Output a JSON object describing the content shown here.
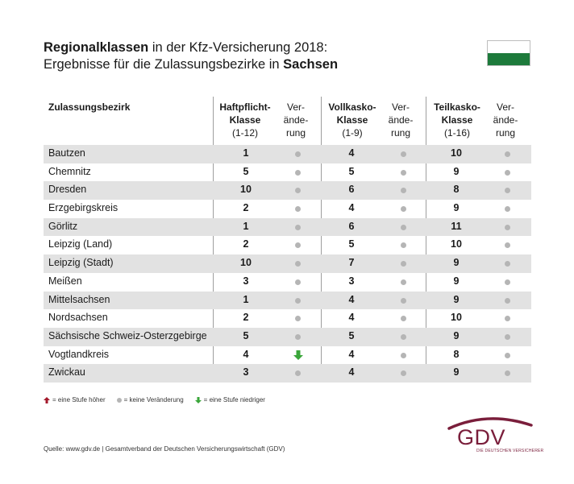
{
  "title": {
    "bold_1": "Regionalklassen",
    "rest_1": " in der Kfz-Versicherung 2018:",
    "rest_2": "Ergebnisse für die Zulassungsbezirke in ",
    "bold_2": "Sachsen"
  },
  "flag": {
    "colors": [
      "#ffffff",
      "#1d7a3b"
    ]
  },
  "columns": {
    "district": "Zulassungsbezirk",
    "haft_1": "Haftpflicht-",
    "haft_2": "Klasse",
    "haft_3": "(1-12)",
    "voll_1": "Vollkasko-",
    "voll_2": "Klasse",
    "voll_3": "(1-9)",
    "teil_1": "Teilkasko-",
    "teil_2": "Klasse",
    "teil_3": "(1-16)",
    "change_1": "Ver-",
    "change_2": "ände-",
    "change_3": "rung"
  },
  "rows": [
    {
      "name": "Bautzen",
      "haft": "1",
      "voll": "4",
      "teil": "10",
      "haft_change": "none",
      "voll_change": "none",
      "teil_change": "none"
    },
    {
      "name": "Chemnitz",
      "haft": "5",
      "voll": "5",
      "teil": "9",
      "haft_change": "none",
      "voll_change": "none",
      "teil_change": "none"
    },
    {
      "name": "Dresden",
      "haft": "10",
      "voll": "6",
      "teil": "8",
      "haft_change": "none",
      "voll_change": "none",
      "teil_change": "none"
    },
    {
      "name": "Erzgebirgskreis",
      "haft": "2",
      "voll": "4",
      "teil": "9",
      "haft_change": "none",
      "voll_change": "none",
      "teil_change": "none"
    },
    {
      "name": "Görlitz",
      "haft": "1",
      "voll": "6",
      "teil": "11",
      "haft_change": "none",
      "voll_change": "none",
      "teil_change": "none"
    },
    {
      "name": "Leipzig (Land)",
      "haft": "2",
      "voll": "5",
      "teil": "10",
      "haft_change": "none",
      "voll_change": "none",
      "teil_change": "none"
    },
    {
      "name": "Leipzig (Stadt)",
      "haft": "10",
      "voll": "7",
      "teil": "9",
      "haft_change": "none",
      "voll_change": "none",
      "teil_change": "none"
    },
    {
      "name": "Meißen",
      "haft": "3",
      "voll": "3",
      "teil": "9",
      "haft_change": "none",
      "voll_change": "none",
      "teil_change": "none"
    },
    {
      "name": "Mittelsachsen",
      "haft": "1",
      "voll": "4",
      "teil": "9",
      "haft_change": "none",
      "voll_change": "none",
      "teil_change": "none"
    },
    {
      "name": "Nordsachsen",
      "haft": "2",
      "voll": "4",
      "teil": "10",
      "haft_change": "none",
      "voll_change": "none",
      "teil_change": "none"
    },
    {
      "name": "Sächsische Schweiz-Osterzgebirge",
      "haft": "5",
      "voll": "5",
      "teil": "9",
      "haft_change": "none",
      "voll_change": "none",
      "teil_change": "none"
    },
    {
      "name": "Vogtlandkreis",
      "haft": "4",
      "voll": "4",
      "teil": "8",
      "haft_change": "down",
      "voll_change": "none",
      "teil_change": "none"
    },
    {
      "name": "Zwickau",
      "haft": "3",
      "voll": "4",
      "teil": "9",
      "haft_change": "none",
      "voll_change": "none",
      "teil_change": "none"
    }
  ],
  "legend": {
    "up": "= eine Stufe höher",
    "none": "= keine Veränderung",
    "down": "= eine Stufe niedriger",
    "up_color": "#a3192b",
    "down_color": "#3aa63a",
    "none_color": "#b5b5b5"
  },
  "source": "Quelle: www.gdv.de | Gesamtverband der Deutschen Versicherungswirtschaft (GDV)",
  "logo": {
    "text": "GDV",
    "sub": "DIE DEUTSCHEN VERSICHERER",
    "color": "#7a1e3b"
  }
}
